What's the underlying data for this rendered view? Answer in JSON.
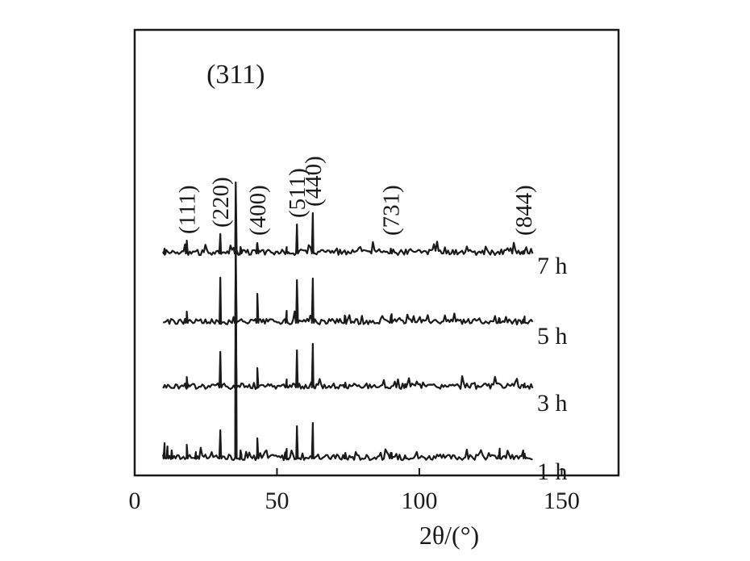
{
  "chart_data": {
    "type": "line",
    "xlabel": "2θ/(°)",
    "ylabel": "",
    "xlim": [
      0,
      170
    ],
    "x_ticks": [
      0,
      50,
      100,
      150
    ],
    "x_tick_labels": [
      "0",
      "50",
      "100",
      "150"
    ],
    "x_range_of_patterns": [
      10,
      140
    ],
    "colors": {
      "trace": "#1a1a1a",
      "axes": "#1a1a1a"
    },
    "series": [
      {
        "name": "1 h",
        "peaks": [
          {
            "x": 10.5,
            "h": 0.21
          },
          {
            "x": 11.5,
            "h": 0.17
          },
          {
            "x": 13,
            "h": 0.12
          },
          {
            "x": 18.3,
            "h": 0.19
          },
          {
            "x": 21.5,
            "h": 0.1
          },
          {
            "x": 30.1,
            "h": 0.37
          },
          {
            "x": 35.5,
            "h": 3.1
          },
          {
            "x": 37.2,
            "h": 0.12
          },
          {
            "x": 43.1,
            "h": 0.27
          },
          {
            "x": 53.4,
            "h": 0.14
          },
          {
            "x": 57,
            "h": 0.42
          },
          {
            "x": 62.6,
            "h": 0.46
          },
          {
            "x": 74,
            "h": 0.09
          },
          {
            "x": 90,
            "h": 0.09
          },
          {
            "x": 95,
            "h": 0.06
          },
          {
            "x": 128,
            "h": 0.06
          },
          {
            "x": 137,
            "h": 0.08
          }
        ]
      },
      {
        "name": "3 h",
        "peaks": [
          {
            "x": 18.3,
            "h": 0.15
          },
          {
            "x": 30.1,
            "h": 0.46
          },
          {
            "x": 35.5,
            "h": 0.7
          },
          {
            "x": 43.1,
            "h": 0.26
          },
          {
            "x": 53.4,
            "h": 0.12
          },
          {
            "x": 57,
            "h": 0.48
          },
          {
            "x": 62.6,
            "h": 0.56
          },
          {
            "x": 74,
            "h": 0.08
          },
          {
            "x": 95,
            "h": 0.06
          },
          {
            "x": 137,
            "h": 0.07
          }
        ]
      },
      {
        "name": "5 h",
        "peaks": [
          {
            "x": 18.3,
            "h": 0.16
          },
          {
            "x": 30.1,
            "h": 0.58
          },
          {
            "x": 35.5,
            "h": 0.82
          },
          {
            "x": 43.1,
            "h": 0.38
          },
          {
            "x": 53.4,
            "h": 0.17
          },
          {
            "x": 57,
            "h": 0.55
          },
          {
            "x": 62.6,
            "h": 0.57
          },
          {
            "x": 74,
            "h": 0.1
          },
          {
            "x": 90,
            "h": 0.1
          },
          {
            "x": 128,
            "h": 0.08
          },
          {
            "x": 137,
            "h": 0.1
          }
        ]
      },
      {
        "name": "7 h",
        "peaks": [
          {
            "x": 10.5,
            "h": 0.08
          },
          {
            "x": 18.3,
            "h": 0.18
          },
          {
            "x": 30.1,
            "h": 0.26
          },
          {
            "x": 35.5,
            "h": 0.9
          },
          {
            "x": 37.2,
            "h": 0.1
          },
          {
            "x": 43.1,
            "h": 0.15
          },
          {
            "x": 53.4,
            "h": 0.1
          },
          {
            "x": 57,
            "h": 0.38
          },
          {
            "x": 62.6,
            "h": 0.52
          },
          {
            "x": 90,
            "h": 0.08
          },
          {
            "x": 136.5,
            "h": 0.05
          }
        ]
      }
    ],
    "annotations": [
      {
        "text": "(111)",
        "x": 18.3,
        "rotated": true
      },
      {
        "text": "(220)",
        "x": 30.1,
        "rotated": true
      },
      {
        "text": "(311)",
        "x": 35.5,
        "rotated": false
      },
      {
        "text": "(400)",
        "x": 43.1,
        "rotated": true
      },
      {
        "text": "(511)",
        "x": 57,
        "rotated": true
      },
      {
        "text": "(440)",
        "x": 62.6,
        "rotated": true
      },
      {
        "text": "(731)",
        "x": 90,
        "rotated": true
      },
      {
        "text": "(844)",
        "x": 136.5,
        "rotated": true
      }
    ]
  }
}
